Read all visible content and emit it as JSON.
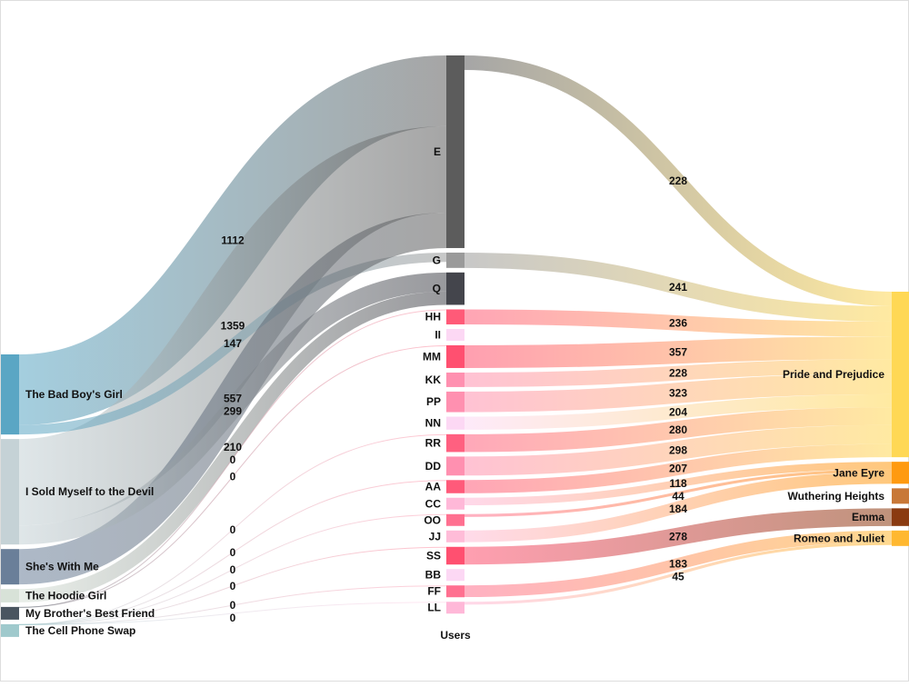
{
  "chart_data": {
    "type": "sankey",
    "title": "",
    "column_labels": {
      "middle": "Users"
    },
    "nodes": [
      {
        "id": "The Bad Boy's Girl",
        "column": 0,
        "color": "#5aa6c4"
      },
      {
        "id": "I Sold Myself to the Devil",
        "column": 0,
        "color": "#c5d2d6"
      },
      {
        "id": "She's With Me",
        "column": 0,
        "color": "#6a7f99"
      },
      {
        "id": "The Hoodie Girl",
        "column": 0,
        "color": "#d8e2d8"
      },
      {
        "id": "My Brother's Best Friend",
        "column": 0,
        "color": "#4a5560"
      },
      {
        "id": "The Cell Phone Swap",
        "column": 0,
        "color": "#9fc9cc"
      },
      {
        "id": "E",
        "column": 1,
        "color": "#5c5c5c"
      },
      {
        "id": "G",
        "column": 1,
        "color": "#9a9a9a"
      },
      {
        "id": "Q",
        "column": 1,
        "color": "#44454c"
      },
      {
        "id": "HH",
        "column": 1,
        "color": "#ff5a78"
      },
      {
        "id": "II",
        "column": 1,
        "color": "#fcd8f4"
      },
      {
        "id": "MM",
        "column": 1,
        "color": "#ff5070"
      },
      {
        "id": "KK",
        "column": 1,
        "color": "#ff90b0"
      },
      {
        "id": "PP",
        "column": 1,
        "color": "#ff90b0"
      },
      {
        "id": "NN",
        "column": 1,
        "color": "#fcd8f4"
      },
      {
        "id": "RR",
        "column": 1,
        "color": "#ff6080"
      },
      {
        "id": "DD",
        "column": 1,
        "color": "#ff90b0"
      },
      {
        "id": "AA",
        "column": 1,
        "color": "#ff5a7a"
      },
      {
        "id": "CC",
        "column": 1,
        "color": "#ffb8d8"
      },
      {
        "id": "OO",
        "column": 1,
        "color": "#ff7090"
      },
      {
        "id": "JJ",
        "column": 1,
        "color": "#ffbcd8"
      },
      {
        "id": "SS",
        "column": 1,
        "color": "#ff5070"
      },
      {
        "id": "BB",
        "column": 1,
        "color": "#fcd8f4"
      },
      {
        "id": "FF",
        "column": 1,
        "color": "#ff7090"
      },
      {
        "id": "LL",
        "column": 1,
        "color": "#ffb8d8"
      },
      {
        "id": "Pride and Prejudice",
        "column": 2,
        "color": "#ffd855"
      },
      {
        "id": "Jane Eyre",
        "column": 2,
        "color": "#ff9a10"
      },
      {
        "id": "Wuthering Heights",
        "column": 2,
        "color": "#c87838"
      },
      {
        "id": "Emma",
        "column": 2,
        "color": "#8a3a10"
      },
      {
        "id": "Romeo and Juliet",
        "column": 2,
        "color": "#ffb830"
      }
    ],
    "links": [
      {
        "source": "The Bad Boy's Girl",
        "target": "E",
        "value": 1112
      },
      {
        "source": "I Sold Myself to the Devil",
        "target": "E",
        "value": 1359
      },
      {
        "source": "The Bad Boy's Girl",
        "target": "G",
        "value": 147
      },
      {
        "source": "She's With Me",
        "target": "E",
        "value": 557
      },
      {
        "source": "I Sold Myself to the Devil",
        "target": "Q",
        "value": 299
      },
      {
        "source": "The Hoodie Girl",
        "target": "Q",
        "value": 210
      },
      {
        "source": "My Brother's Best Friend",
        "target": "HH",
        "value": 0
      },
      {
        "source": "My Brother's Best Friend",
        "target": "MM",
        "value": 0
      },
      {
        "source": "The Cell Phone Swap",
        "target": "RR",
        "value": 0
      },
      {
        "source": "The Cell Phone Swap",
        "target": "AA",
        "value": 0
      },
      {
        "source": "The Cell Phone Swap",
        "target": "OO",
        "value": 0
      },
      {
        "source": "The Cell Phone Swap",
        "target": "SS",
        "value": 0
      },
      {
        "source": "The Cell Phone Swap",
        "target": "FF",
        "value": 0
      },
      {
        "source": "The Cell Phone Swap",
        "target": "LL",
        "value": 0
      },
      {
        "source": "E",
        "target": "Pride and Prejudice",
        "value": 228
      },
      {
        "source": "G",
        "target": "Pride and Prejudice",
        "value": 241
      },
      {
        "source": "HH",
        "target": "Pride and Prejudice",
        "value": 236
      },
      {
        "source": "MM",
        "target": "Pride and Prejudice",
        "value": 357
      },
      {
        "source": "KK",
        "target": "Pride and Prejudice",
        "value": 228
      },
      {
        "source": "PP",
        "target": "Pride and Prejudice",
        "value": 323
      },
      {
        "source": "NN",
        "target": "Pride and Prejudice",
        "value": 204
      },
      {
        "source": "RR",
        "target": "Pride and Prejudice",
        "value": 280
      },
      {
        "source": "DD",
        "target": "Pride and Prejudice",
        "value": 298
      },
      {
        "source": "AA",
        "target": "Pride and Prejudice",
        "value": 207
      },
      {
        "source": "CC",
        "target": "Jane Eyre",
        "value": 118
      },
      {
        "source": "OO",
        "target": "Jane Eyre",
        "value": 44
      },
      {
        "source": "JJ",
        "target": "Jane Eyre",
        "value": 184
      },
      {
        "source": "SS",
        "target": "Emma",
        "value": 278
      },
      {
        "source": "FF",
        "target": "Romeo and Juliet",
        "value": 183
      },
      {
        "source": "LL",
        "target": "Romeo and Juliet",
        "value": 45
      }
    ]
  }
}
